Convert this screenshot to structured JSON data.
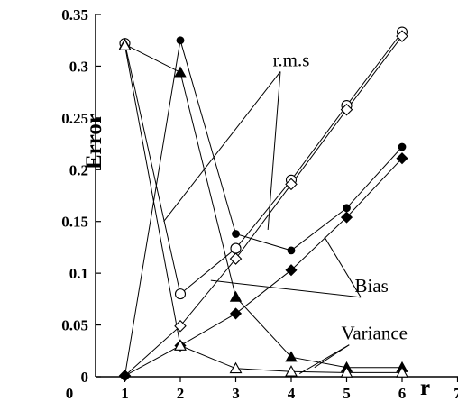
{
  "chart_data": {
    "type": "line",
    "title": "",
    "xlabel": "r",
    "ylabel": "Error",
    "xlim": [
      0,
      7
    ],
    "ylim": [
      0,
      0.35
    ],
    "x_ticks": [
      0,
      1,
      2,
      3,
      4,
      5,
      6,
      7
    ],
    "y_ticks": [
      0,
      0.05,
      0.1,
      0.15,
      0.2,
      0.25,
      0.3,
      0.35
    ],
    "x_tick_labels": [
      "0",
      "1",
      "2",
      "3",
      "4",
      "5",
      "6",
      "7"
    ],
    "y_tick_labels": [
      "0",
      "0.05",
      "0.1",
      "0.15",
      "0.2",
      "0.25",
      "0.3",
      "0.35"
    ],
    "grid": false,
    "legend": "none",
    "series": [
      {
        "marker": "circle-open",
        "x": [
          1,
          2,
          3,
          4,
          5,
          6
        ],
        "y": [
          0.322,
          0.08,
          0.124,
          0.19,
          0.262,
          0.333
        ]
      },
      {
        "marker": "circle-filled",
        "x": [
          1,
          2,
          3,
          4,
          5,
          6
        ],
        "y": [
          0.001,
          0.325,
          0.138,
          0.122,
          0.163,
          0.222
        ]
      },
      {
        "marker": "diamond-open",
        "x": [
          1,
          2,
          3,
          4,
          5,
          6
        ],
        "y": [
          0.001,
          0.049,
          0.114,
          0.186,
          0.258,
          0.329
        ]
      },
      {
        "marker": "diamond-filled",
        "x": [
          1,
          2,
          3,
          4,
          5,
          6
        ],
        "y": [
          0.001,
          0.03,
          0.061,
          0.103,
          0.154,
          0.211
        ]
      },
      {
        "marker": "triangle-filled",
        "x": [
          1,
          2,
          3,
          4,
          5,
          6
        ],
        "y": [
          0.321,
          0.294,
          0.077,
          0.019,
          0.009,
          0.009
        ]
      },
      {
        "marker": "triangle-open",
        "x": [
          1,
          2,
          3,
          4,
          5,
          6
        ],
        "y": [
          0.32,
          0.03,
          0.008,
          0.005,
          0.004,
          0.004
        ]
      }
    ],
    "annotations": [
      {
        "text": "r.m.s",
        "label_at": [
          4.0,
          0.3
        ],
        "point_to": [
          [
            1.7,
            0.15
          ],
          [
            3.58,
            0.142
          ]
        ]
      },
      {
        "text": "Bias",
        "label_at": [
          5.45,
          0.082
        ],
        "point_to": [
          [
            2.55,
            0.093
          ],
          [
            4.6,
            0.135
          ]
        ]
      },
      {
        "text": "Variance",
        "label_at": [
          5.5,
          0.036
        ],
        "point_to": [
          [
            4.42,
            0.009
          ],
          [
            4.15,
            0.003
          ]
        ]
      }
    ]
  }
}
